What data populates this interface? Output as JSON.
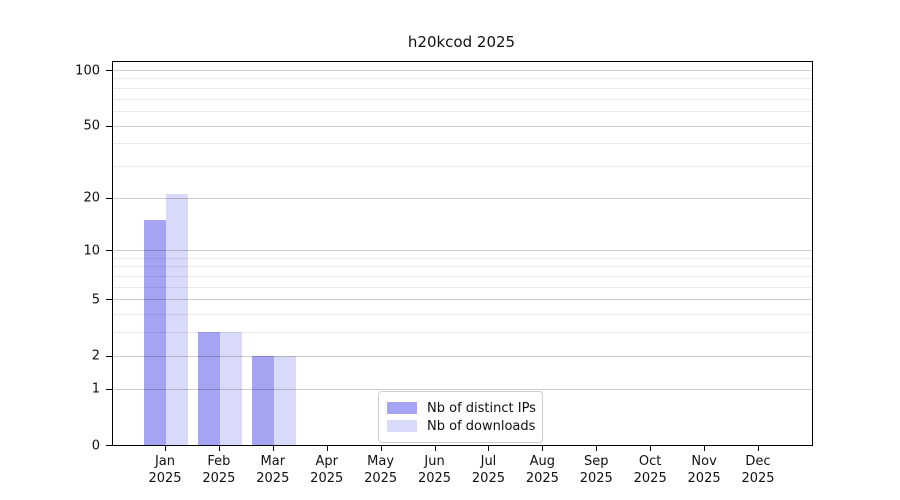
{
  "title": "h20kcod 2025",
  "colors": {
    "distinct_ips": "#a4a4f2",
    "downloads": "#d9d9fa",
    "axis": "#000000",
    "legend_border": "#cccccc",
    "background": "#ffffff"
  },
  "chart_data": {
    "type": "bar",
    "title": "h20kcod 2025",
    "categories": [
      "Jan",
      "Feb",
      "Mar",
      "Apr",
      "May",
      "Jun",
      "Jul",
      "Aug",
      "Sep",
      "Oct",
      "Nov",
      "Dec"
    ],
    "year_label": "2025",
    "series": [
      {
        "name": "Nb of distinct IPs",
        "color_key": "distinct_ips",
        "values": [
          15,
          3,
          2,
          0,
          0,
          0,
          0,
          0,
          0,
          0,
          0,
          0
        ]
      },
      {
        "name": "Nb of downloads",
        "color_key": "downloads",
        "values": [
          21,
          3,
          2,
          0,
          0,
          0,
          0,
          0,
          0,
          0,
          0,
          0
        ]
      }
    ],
    "yscale": "log1p",
    "ylim": [
      0,
      100
    ],
    "yticks": [
      0,
      1,
      2,
      5,
      10,
      20,
      50,
      100
    ],
    "grid_minor": [
      3,
      4,
      6,
      7,
      8,
      9,
      30,
      40,
      60,
      70,
      80,
      90
    ],
    "grid": "horizontal",
    "legend_position": "bottom-center"
  }
}
